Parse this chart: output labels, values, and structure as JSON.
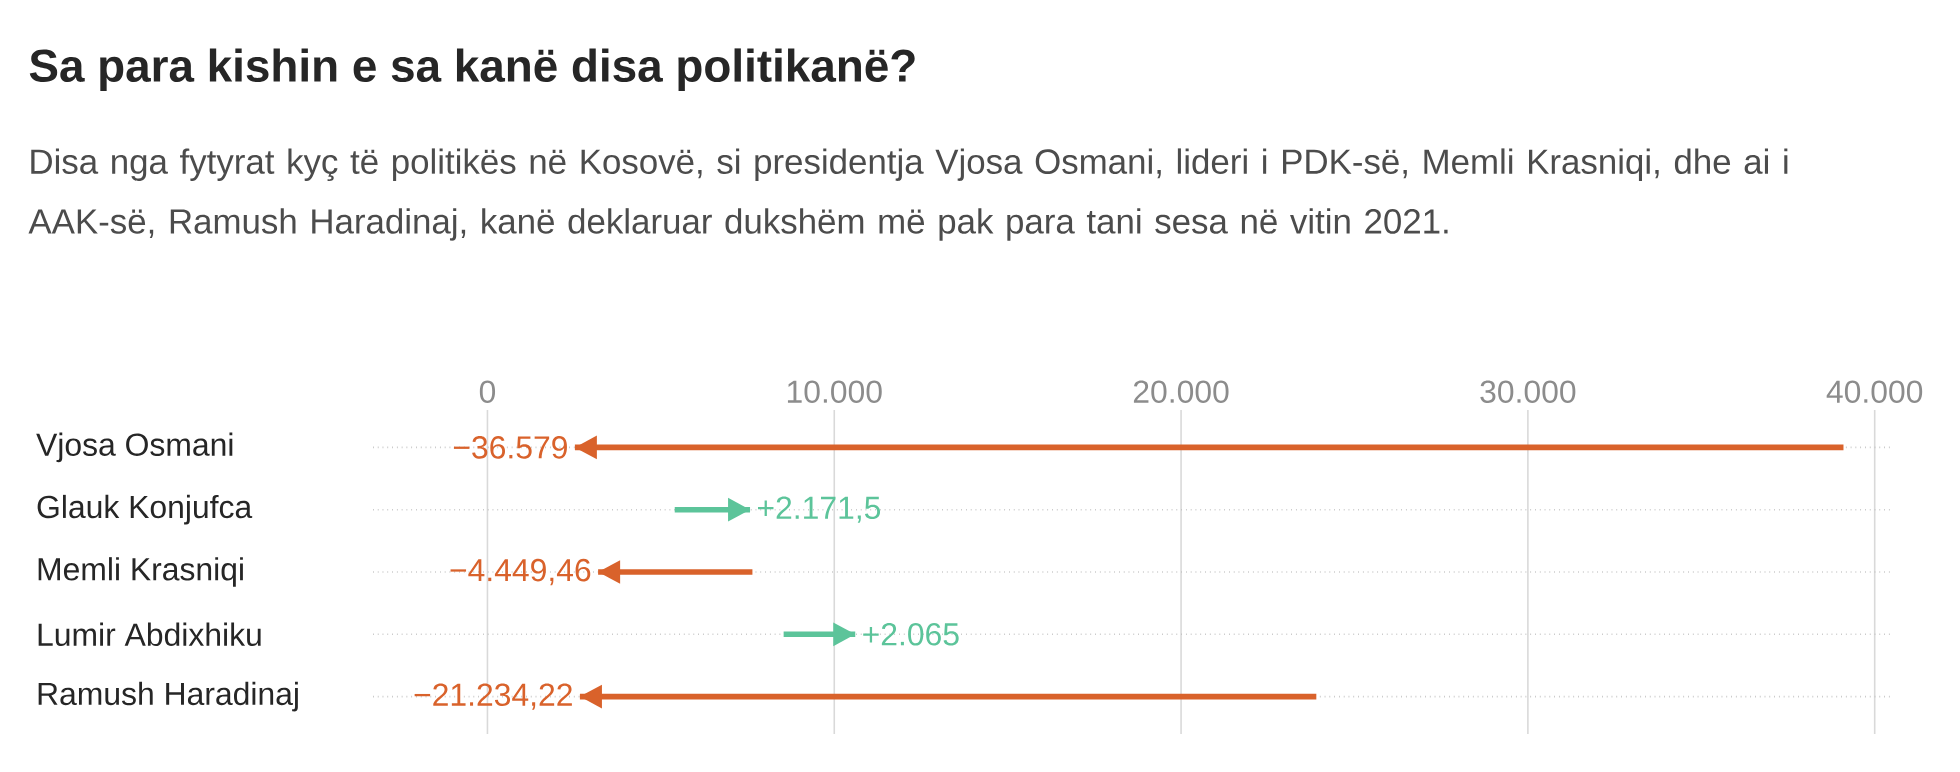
{
  "chart_data": {
    "type": "bar",
    "orientation": "horizontal",
    "title": "Sa para kishin e sa kanë disa politikanë?",
    "subtitle": "Disa nga fytyrat kyç të politikës në Kosovë, si presidentja Vjosa Osmani, lideri i PDK-së, Memli Krasniqi, dhe ai i AAK-së, Ramush Haradinaj, kanë deklaruar dukshëm më pak para tani sesa në vitin 2021.",
    "categories": [
      "Vjosa Osmani",
      "Glauk Konjufca",
      "Memli Krasniqi",
      "Lumir Abdixhiku",
      "Ramush Haradinaj"
    ],
    "base": [
      39100,
      5400,
      7640,
      8540,
      23900
    ],
    "values": [
      -36579,
      2171.5,
      -4449.46,
      2065,
      -21234.22
    ],
    "value_labels": [
      "−36.579",
      "+2.171,5",
      "−4.449,46",
      "+2.065",
      "−21.234,22"
    ],
    "colors": [
      "#d9622b",
      "#5cc49a",
      "#d9622b",
      "#5cc49a",
      "#d9622b"
    ],
    "xlim": [
      -3300,
      40500
    ],
    "xticks": [
      {
        "value": 0,
        "label": "0"
      },
      {
        "value": 10000,
        "label": "10.000"
      },
      {
        "value": 20000,
        "label": "20.000"
      },
      {
        "value": 30000,
        "label": "30.000"
      },
      {
        "value": 40000,
        "label": "40.000"
      }
    ],
    "grid": true
  }
}
